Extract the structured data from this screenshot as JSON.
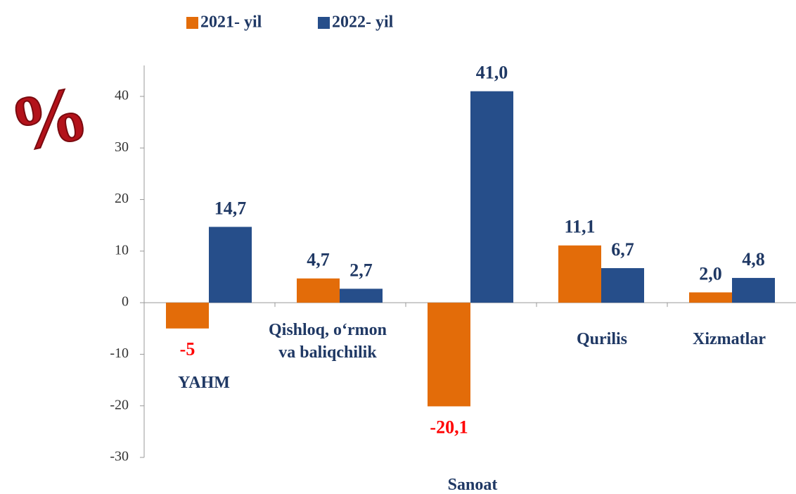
{
  "chart_data": {
    "type": "bar",
    "unit_icon": "%",
    "categories": [
      "YAHM",
      "Qishloq, o‘rmon\nva baliqchilik",
      "Sanoat",
      "Qurilis",
      "Xizmatlar"
    ],
    "series": [
      {
        "name": "2021- yil",
        "color": "#e36c09",
        "values": [
          -5,
          4.7,
          -20.1,
          11.1,
          2.0
        ],
        "value_labels": [
          "-5",
          "4,7",
          "-20,1",
          "11,1",
          "2,0"
        ]
      },
      {
        "name": "2022- yil",
        "color": "#264e8a",
        "values": [
          14.7,
          2.7,
          41.0,
          6.7,
          4.8
        ],
        "value_labels": [
          "14,7",
          "2,7",
          "41,0",
          "6,7",
          "4,8"
        ]
      }
    ],
    "ylim": [
      -30,
      46
    ],
    "yticks": [
      -30,
      -20,
      -10,
      0,
      10,
      20,
      30,
      40
    ],
    "grid": false
  }
}
